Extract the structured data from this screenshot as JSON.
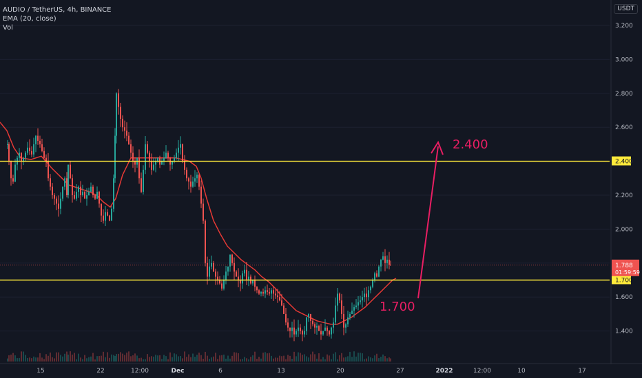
{
  "header": {
    "symbol": "AUDIO / TetherUS, 4h, BINANCE",
    "indicator": "EMA (20, close)",
    "volume": "Vol",
    "currency": "USDT"
  },
  "colors": {
    "background": "#131722",
    "up": "#26a69a",
    "down": "#ef5350",
    "ema": "#e53935",
    "level": "#ffeb3b",
    "annotation": "#e91e63",
    "axis_text": "#b2b5be"
  },
  "chart_data": {
    "type": "candlestick",
    "timeframe": "4h",
    "ylim": [
      1.3,
      3.3
    ],
    "y_ticks": [
      "3.200",
      "3.000",
      "2.800",
      "2.600",
      "2.400",
      "2.200",
      "2.000",
      "1.800",
      "1.600",
      "1.400"
    ],
    "x_ticks": [
      "15",
      "22",
      "12:00",
      "Dec",
      "6",
      "13",
      "20",
      "27",
      "2022",
      "12:00",
      "10",
      "17"
    ],
    "horizontal_levels": [
      {
        "value": 2.4,
        "label": "2.400"
      },
      {
        "value": 1.7,
        "label": "1.700"
      }
    ],
    "last_price": {
      "value": 1.788,
      "label": "1.788",
      "countdown": "01:59:59"
    },
    "annotations": [
      {
        "text": "2.400",
        "type": "target"
      },
      {
        "text": "1.700",
        "type": "support"
      }
    ],
    "series": [
      {
        "kind": "price",
        "close_path": [
          [
            11,
            2.5
          ],
          [
            13,
            2.4
          ],
          [
            16,
            2.3
          ],
          [
            19,
            2.28
          ],
          [
            22,
            2.38
          ],
          [
            25,
            2.42
          ],
          [
            28,
            2.45
          ],
          [
            31,
            2.4
          ],
          [
            34,
            2.42
          ],
          [
            37,
            2.45
          ],
          [
            40,
            2.48
          ],
          [
            43,
            2.46
          ],
          [
            46,
            2.44
          ],
          [
            49,
            2.5
          ],
          [
            52,
            2.55
          ],
          [
            55,
            2.52
          ],
          [
            58,
            2.5
          ],
          [
            61,
            2.46
          ],
          [
            64,
            2.42
          ],
          [
            67,
            2.4
          ],
          [
            70,
            2.3
          ],
          [
            73,
            2.25
          ],
          [
            76,
            2.2
          ],
          [
            79,
            2.18
          ],
          [
            82,
            2.15
          ],
          [
            85,
            2.12
          ],
          [
            88,
            2.18
          ],
          [
            91,
            2.25
          ],
          [
            94,
            2.3
          ],
          [
            97,
            2.2
          ],
          [
            99,
            2.38
          ],
          [
            102,
            2.3
          ],
          [
            105,
            2.2
          ],
          [
            108,
            2.18
          ],
          [
            111,
            2.22
          ],
          [
            114,
            2.25
          ],
          [
            117,
            2.2
          ],
          [
            120,
            2.22
          ],
          [
            123,
            2.18
          ],
          [
            126,
            2.2
          ],
          [
            129,
            2.22
          ],
          [
            132,
            2.25
          ],
          [
            135,
            2.2
          ],
          [
            138,
            2.18
          ],
          [
            141,
            2.22
          ],
          [
            144,
            2.15
          ],
          [
            147,
            2.08
          ],
          [
            150,
            2.05
          ],
          [
            153,
            2.1
          ],
          [
            156,
            2.08
          ],
          [
            159,
            2.05
          ],
          [
            162,
            2.12
          ],
          [
            165,
            2.3
          ],
          [
            167,
            2.55
          ],
          [
            169,
            2.8
          ],
          [
            172,
            2.72
          ],
          [
            175,
            2.65
          ],
          [
            178,
            2.6
          ],
          [
            181,
            2.58
          ],
          [
            184,
            2.55
          ],
          [
            187,
            2.5
          ],
          [
            190,
            2.45
          ],
          [
            193,
            2.4
          ],
          [
            196,
            2.38
          ],
          [
            199,
            2.42
          ],
          [
            202,
            2.3
          ],
          [
            205,
            2.22
          ],
          [
            208,
            2.35
          ],
          [
            211,
            2.5
          ],
          [
            214,
            2.45
          ],
          [
            217,
            2.4
          ],
          [
            220,
            2.35
          ],
          [
            223,
            2.38
          ],
          [
            226,
            2.4
          ],
          [
            229,
            2.42
          ],
          [
            232,
            2.38
          ],
          [
            235,
            2.4
          ],
          [
            238,
            2.42
          ],
          [
            241,
            2.45
          ],
          [
            244,
            2.42
          ],
          [
            247,
            2.38
          ],
          [
            250,
            2.4
          ],
          [
            253,
            2.42
          ],
          [
            256,
            2.45
          ],
          [
            259,
            2.48
          ],
          [
            262,
            2.5
          ],
          [
            265,
            2.4
          ],
          [
            268,
            2.35
          ],
          [
            271,
            2.3
          ],
          [
            274,
            2.28
          ],
          [
            277,
            2.25
          ],
          [
            280,
            2.28
          ],
          [
            283,
            2.3
          ],
          [
            286,
            2.32
          ],
          [
            289,
            2.25
          ],
          [
            292,
            2.15
          ],
          [
            295,
            2.05
          ],
          [
            298,
            1.8
          ],
          [
            301,
            1.72
          ],
          [
            304,
            1.78
          ],
          [
            307,
            1.8
          ],
          [
            310,
            1.75
          ],
          [
            313,
            1.72
          ],
          [
            316,
            1.7
          ],
          [
            319,
            1.68
          ],
          [
            322,
            1.65
          ],
          [
            325,
            1.7
          ],
          [
            328,
            1.75
          ],
          [
            331,
            1.78
          ],
          [
            334,
            1.85
          ],
          [
            337,
            1.8
          ],
          [
            340,
            1.75
          ],
          [
            343,
            1.72
          ],
          [
            346,
            1.7
          ],
          [
            349,
            1.68
          ],
          [
            352,
            1.74
          ],
          [
            355,
            1.76
          ],
          [
            358,
            1.7
          ],
          [
            361,
            1.72
          ],
          [
            364,
            1.68
          ],
          [
            367,
            1.7
          ],
          [
            370,
            1.66
          ],
          [
            373,
            1.64
          ],
          [
            376,
            1.62
          ],
          [
            379,
            1.63
          ],
          [
            382,
            1.62
          ],
          [
            385,
            1.64
          ],
          [
            388,
            1.63
          ],
          [
            391,
            1.62
          ],
          [
            394,
            1.64
          ],
          [
            397,
            1.62
          ],
          [
            400,
            1.61
          ],
          [
            403,
            1.6
          ],
          [
            406,
            1.58
          ],
          [
            409,
            1.55
          ],
          [
            412,
            1.5
          ],
          [
            415,
            1.45
          ],
          [
            418,
            1.42
          ],
          [
            421,
            1.4
          ],
          [
            424,
            1.42
          ],
          [
            427,
            1.38
          ],
          [
            430,
            1.4
          ],
          [
            433,
            1.42
          ],
          [
            436,
            1.4
          ],
          [
            439,
            1.38
          ],
          [
            442,
            1.4
          ],
          [
            445,
            1.48
          ],
          [
            448,
            1.5
          ],
          [
            451,
            1.46
          ],
          [
            454,
            1.44
          ],
          [
            457,
            1.42
          ],
          [
            460,
            1.43
          ],
          [
            463,
            1.4
          ],
          [
            466,
            1.38
          ],
          [
            469,
            1.4
          ],
          [
            472,
            1.42
          ],
          [
            475,
            1.4
          ],
          [
            478,
            1.38
          ],
          [
            481,
            1.42
          ],
          [
            484,
            1.45
          ],
          [
            487,
            1.55
          ],
          [
            490,
            1.62
          ],
          [
            493,
            1.58
          ],
          [
            496,
            1.5
          ],
          [
            499,
            1.42
          ],
          [
            502,
            1.44
          ],
          [
            505,
            1.48
          ],
          [
            508,
            1.5
          ],
          [
            511,
            1.52
          ],
          [
            514,
            1.54
          ],
          [
            517,
            1.55
          ],
          [
            520,
            1.57
          ],
          [
            523,
            1.58
          ],
          [
            526,
            1.6
          ],
          [
            529,
            1.62
          ],
          [
            532,
            1.6
          ],
          [
            535,
            1.64
          ],
          [
            538,
            1.66
          ],
          [
            541,
            1.7
          ],
          [
            544,
            1.74
          ],
          [
            547,
            1.72
          ],
          [
            550,
            1.78
          ],
          [
            553,
            1.82
          ],
          [
            556,
            1.84
          ],
          [
            559,
            1.8
          ],
          [
            562,
            1.82
          ],
          [
            565,
            1.79
          ],
          [
            567,
            1.788
          ]
        ]
      },
      {
        "kind": "ema",
        "name": "EMA (20, close)",
        "path": [
          [
            0,
            2.63
          ],
          [
            10,
            2.58
          ],
          [
            20,
            2.48
          ],
          [
            30,
            2.42
          ],
          [
            45,
            2.41
          ],
          [
            60,
            2.43
          ],
          [
            75,
            2.36
          ],
          [
            90,
            2.3
          ],
          [
            100,
            2.26
          ],
          [
            115,
            2.24
          ],
          [
            130,
            2.22
          ],
          [
            140,
            2.2
          ],
          [
            150,
            2.16
          ],
          [
            160,
            2.13
          ],
          [
            168,
            2.18
          ],
          [
            178,
            2.32
          ],
          [
            190,
            2.42
          ],
          [
            205,
            2.42
          ],
          [
            220,
            2.42
          ],
          [
            240,
            2.42
          ],
          [
            255,
            2.42
          ],
          [
            265,
            2.41
          ],
          [
            275,
            2.4
          ],
          [
            285,
            2.37
          ],
          [
            292,
            2.3
          ],
          [
            300,
            2.18
          ],
          [
            310,
            2.05
          ],
          [
            320,
            1.97
          ],
          [
            330,
            1.9
          ],
          [
            340,
            1.86
          ],
          [
            350,
            1.82
          ],
          [
            360,
            1.79
          ],
          [
            370,
            1.76
          ],
          [
            380,
            1.72
          ],
          [
            390,
            1.69
          ],
          [
            400,
            1.65
          ],
          [
            410,
            1.6
          ],
          [
            420,
            1.56
          ],
          [
            430,
            1.52
          ],
          [
            440,
            1.5
          ],
          [
            450,
            1.48
          ],
          [
            460,
            1.46
          ],
          [
            470,
            1.45
          ],
          [
            480,
            1.44
          ],
          [
            490,
            1.44
          ],
          [
            500,
            1.46
          ],
          [
            510,
            1.48
          ],
          [
            520,
            1.51
          ],
          [
            530,
            1.54
          ],
          [
            540,
            1.58
          ],
          [
            550,
            1.62
          ],
          [
            560,
            1.66
          ],
          [
            570,
            1.7
          ],
          [
            575,
            1.71
          ]
        ]
      }
    ]
  }
}
